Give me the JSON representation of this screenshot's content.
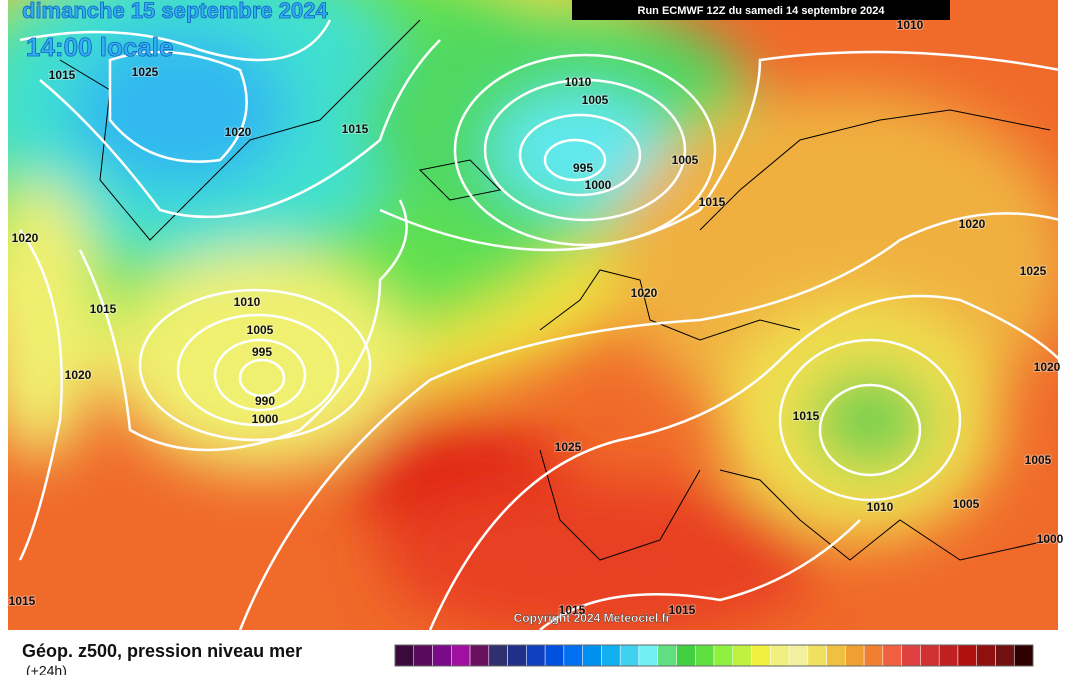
{
  "header": {
    "date": "dimanche 15 septembre 2024",
    "time": "14:00 locale",
    "run": "Run ECMWF 12Z du samedi 14 septembre 2024"
  },
  "map": {
    "isobar_labels": [
      "1015",
      "1025",
      "1020",
      "1015",
      "1010",
      "1005",
      "995",
      "1000",
      "1005",
      "1015",
      "1020",
      "1025",
      "1020",
      "1015",
      "1010",
      "1005",
      "995",
      "1020",
      "990",
      "1000",
      "1020",
      "1015",
      "1025",
      "1005",
      "1010",
      "1005",
      "1020",
      "1000",
      "1015",
      "1015",
      "1015",
      "1010"
    ],
    "copyright": "Copyright 2024 Meteociel.fr"
  },
  "legend": {
    "title": "Géop. z500, pression niveau mer",
    "subtitle": "(+24h)",
    "colors": [
      "#3a0a3a",
      "#5a0a5a",
      "#7a0a8a",
      "#a010a0",
      "#6a1060",
      "#303070",
      "#20308a",
      "#1040c0",
      "#0050e0",
      "#0070f0",
      "#0090f0",
      "#10b0f0",
      "#40d0f0",
      "#70f0f0",
      "#60e080",
      "#40d040",
      "#60e040",
      "#90f040",
      "#c0f040",
      "#f0f040",
      "#f0f080",
      "#f0f0a0",
      "#f0e060",
      "#f0c040",
      "#f0a030",
      "#f08030",
      "#f06040",
      "#e04040",
      "#d03030",
      "#c02020",
      "#b01010",
      "#901010",
      "#701010",
      "#300000"
    ]
  }
}
